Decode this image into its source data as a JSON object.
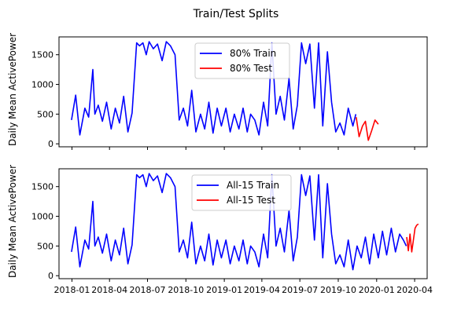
{
  "figure_title": "Train/Test Splits",
  "colors": {
    "train": "#0000ff",
    "test": "#ff0000",
    "axes": "#000000"
  },
  "chart_data": [
    {
      "type": "line",
      "ylabel": "Daily Mean ActivePower",
      "xlabel": "",
      "ylim": [
        -50,
        1800
      ],
      "yticks": [
        0,
        500,
        1000,
        1500
      ],
      "x_tick_labels_visible": false,
      "x_ticks": [
        "2018-01",
        "2018-04",
        "2018-07",
        "2018-10",
        "2019-01",
        "2019-04",
        "2019-07",
        "2019-10",
        "2020-01",
        "2020-04"
      ],
      "xlim": [
        "2017-12-01",
        "2020-05-01"
      ],
      "legend": {
        "loc": "upper center",
        "entries": [
          "80% Train",
          "80% Test"
        ]
      },
      "series": [
        {
          "name": "80% Train",
          "color": "train",
          "x": [
            "2017-12-31",
            "2018-01-10",
            "2018-01-20",
            "2018-02-01",
            "2018-02-10",
            "2018-02-20",
            "2018-02-25",
            "2018-03-05",
            "2018-03-15",
            "2018-03-25",
            "2018-04-05",
            "2018-04-15",
            "2018-04-25",
            "2018-05-05",
            "2018-05-15",
            "2018-05-25",
            "2018-06-05",
            "2018-06-12",
            "2018-06-20",
            "2018-06-28",
            "2018-07-05",
            "2018-07-15",
            "2018-07-25",
            "2018-08-05",
            "2018-08-15",
            "2018-08-25",
            "2018-09-05",
            "2018-09-15",
            "2018-09-25",
            "2018-10-05",
            "2018-10-15",
            "2018-10-25",
            "2018-11-05",
            "2018-11-15",
            "2018-11-25",
            "2018-12-05",
            "2018-12-15",
            "2018-12-25",
            "2019-01-05",
            "2019-01-15",
            "2019-01-25",
            "2019-02-05",
            "2019-02-15",
            "2019-02-25",
            "2019-03-05",
            "2019-03-15",
            "2019-03-25",
            "2019-04-05",
            "2019-04-15",
            "2019-04-25",
            "2019-05-05",
            "2019-05-15",
            "2019-05-25",
            "2019-06-05",
            "2019-06-15",
            "2019-06-25",
            "2019-07-05",
            "2019-07-15",
            "2019-07-25",
            "2019-08-05",
            "2019-08-15",
            "2019-08-25",
            "2019-09-05",
            "2019-09-15",
            "2019-09-25",
            "2019-10-05",
            "2019-10-15",
            "2019-10-25",
            "2019-11-05",
            "2019-11-12"
          ],
          "y": [
            400,
            820,
            150,
            600,
            450,
            1250,
            500,
            650,
            380,
            700,
            250,
            600,
            350,
            800,
            200,
            520,
            1700,
            1650,
            1700,
            1500,
            1720,
            1600,
            1680,
            1400,
            1720,
            1650,
            1500,
            400,
            600,
            300,
            900,
            200,
            500,
            250,
            700,
            180,
            600,
            300,
            600,
            200,
            500,
            250,
            600,
            200,
            500,
            400,
            150,
            700,
            300,
            1700,
            500,
            800,
            400,
            1100,
            250,
            650,
            1700,
            1350,
            1680,
            600,
            1700,
            300,
            1550,
            700,
            200,
            350,
            150,
            600,
            300,
            500
          ]
        },
        {
          "name": "80% Test",
          "color": "test",
          "x": [
            "2019-11-13",
            "2019-11-20",
            "2019-11-28",
            "2019-12-05",
            "2019-12-12",
            "2019-12-20",
            "2019-12-28",
            "2020-01-05"
          ],
          "y": [
            450,
            120,
            300,
            380,
            60,
            220,
            400,
            330
          ]
        }
      ]
    },
    {
      "type": "line",
      "ylabel": "Daily Mean ActivePower",
      "xlabel": "",
      "ylim": [
        -50,
        1800
      ],
      "yticks": [
        0,
        500,
        1000,
        1500
      ],
      "x_ticks": [
        "2018-01",
        "2018-04",
        "2018-07",
        "2018-10",
        "2019-01",
        "2019-04",
        "2019-07",
        "2019-10",
        "2020-01",
        "2020-04"
      ],
      "xlim": [
        "2017-12-01",
        "2020-05-01"
      ],
      "legend": {
        "loc": "upper center",
        "entries": [
          "All-15 Train",
          "All-15 Test"
        ]
      },
      "series": [
        {
          "name": "All-15 Train",
          "color": "train",
          "x": [
            "2017-12-31",
            "2018-01-10",
            "2018-01-20",
            "2018-02-01",
            "2018-02-10",
            "2018-02-20",
            "2018-02-25",
            "2018-03-05",
            "2018-03-15",
            "2018-03-25",
            "2018-04-05",
            "2018-04-15",
            "2018-04-25",
            "2018-05-05",
            "2018-05-15",
            "2018-05-25",
            "2018-06-05",
            "2018-06-12",
            "2018-06-20",
            "2018-06-28",
            "2018-07-05",
            "2018-07-15",
            "2018-07-25",
            "2018-08-05",
            "2018-08-15",
            "2018-08-25",
            "2018-09-05",
            "2018-09-15",
            "2018-09-25",
            "2018-10-05",
            "2018-10-15",
            "2018-10-25",
            "2018-11-05",
            "2018-11-15",
            "2018-11-25",
            "2018-12-05",
            "2018-12-15",
            "2018-12-25",
            "2019-01-05",
            "2019-01-15",
            "2019-01-25",
            "2019-02-05",
            "2019-02-15",
            "2019-02-25",
            "2019-03-05",
            "2019-03-15",
            "2019-03-25",
            "2019-04-05",
            "2019-04-15",
            "2019-04-25",
            "2019-05-05",
            "2019-05-15",
            "2019-05-25",
            "2019-06-05",
            "2019-06-15",
            "2019-06-25",
            "2019-07-05",
            "2019-07-15",
            "2019-07-25",
            "2019-08-05",
            "2019-08-15",
            "2019-08-25",
            "2019-09-05",
            "2019-09-15",
            "2019-09-25",
            "2019-10-05",
            "2019-10-15",
            "2019-10-25",
            "2019-11-05",
            "2019-11-15",
            "2019-11-25",
            "2019-12-05",
            "2019-12-15",
            "2019-12-25",
            "2020-01-05",
            "2020-01-15",
            "2020-01-25",
            "2020-02-05",
            "2020-02-15",
            "2020-02-25",
            "2020-03-05",
            "2020-03-12"
          ],
          "y": [
            400,
            820,
            150,
            600,
            450,
            1250,
            500,
            650,
            380,
            700,
            250,
            600,
            350,
            800,
            200,
            520,
            1700,
            1650,
            1700,
            1500,
            1720,
            1600,
            1680,
            1400,
            1720,
            1650,
            1500,
            400,
            600,
            300,
            900,
            200,
            500,
            250,
            700,
            180,
            600,
            300,
            600,
            200,
            500,
            250,
            600,
            200,
            500,
            400,
            150,
            700,
            300,
            1700,
            500,
            800,
            400,
            1100,
            250,
            650,
            1700,
            1350,
            1680,
            600,
            1700,
            300,
            1550,
            700,
            200,
            350,
            150,
            600,
            100,
            500,
            300,
            650,
            200,
            700,
            300,
            750,
            350,
            800,
            400,
            700,
            600,
            500
          ]
        },
        {
          "name": "All-15 Test",
          "color": "test",
          "x": [
            "2020-03-13",
            "2020-03-17",
            "2020-03-21",
            "2020-03-25",
            "2020-03-29",
            "2020-04-02",
            "2020-04-06",
            "2020-04-10"
          ],
          "y": [
            650,
            420,
            700,
            400,
            600,
            800,
            850,
            870
          ]
        }
      ]
    }
  ]
}
